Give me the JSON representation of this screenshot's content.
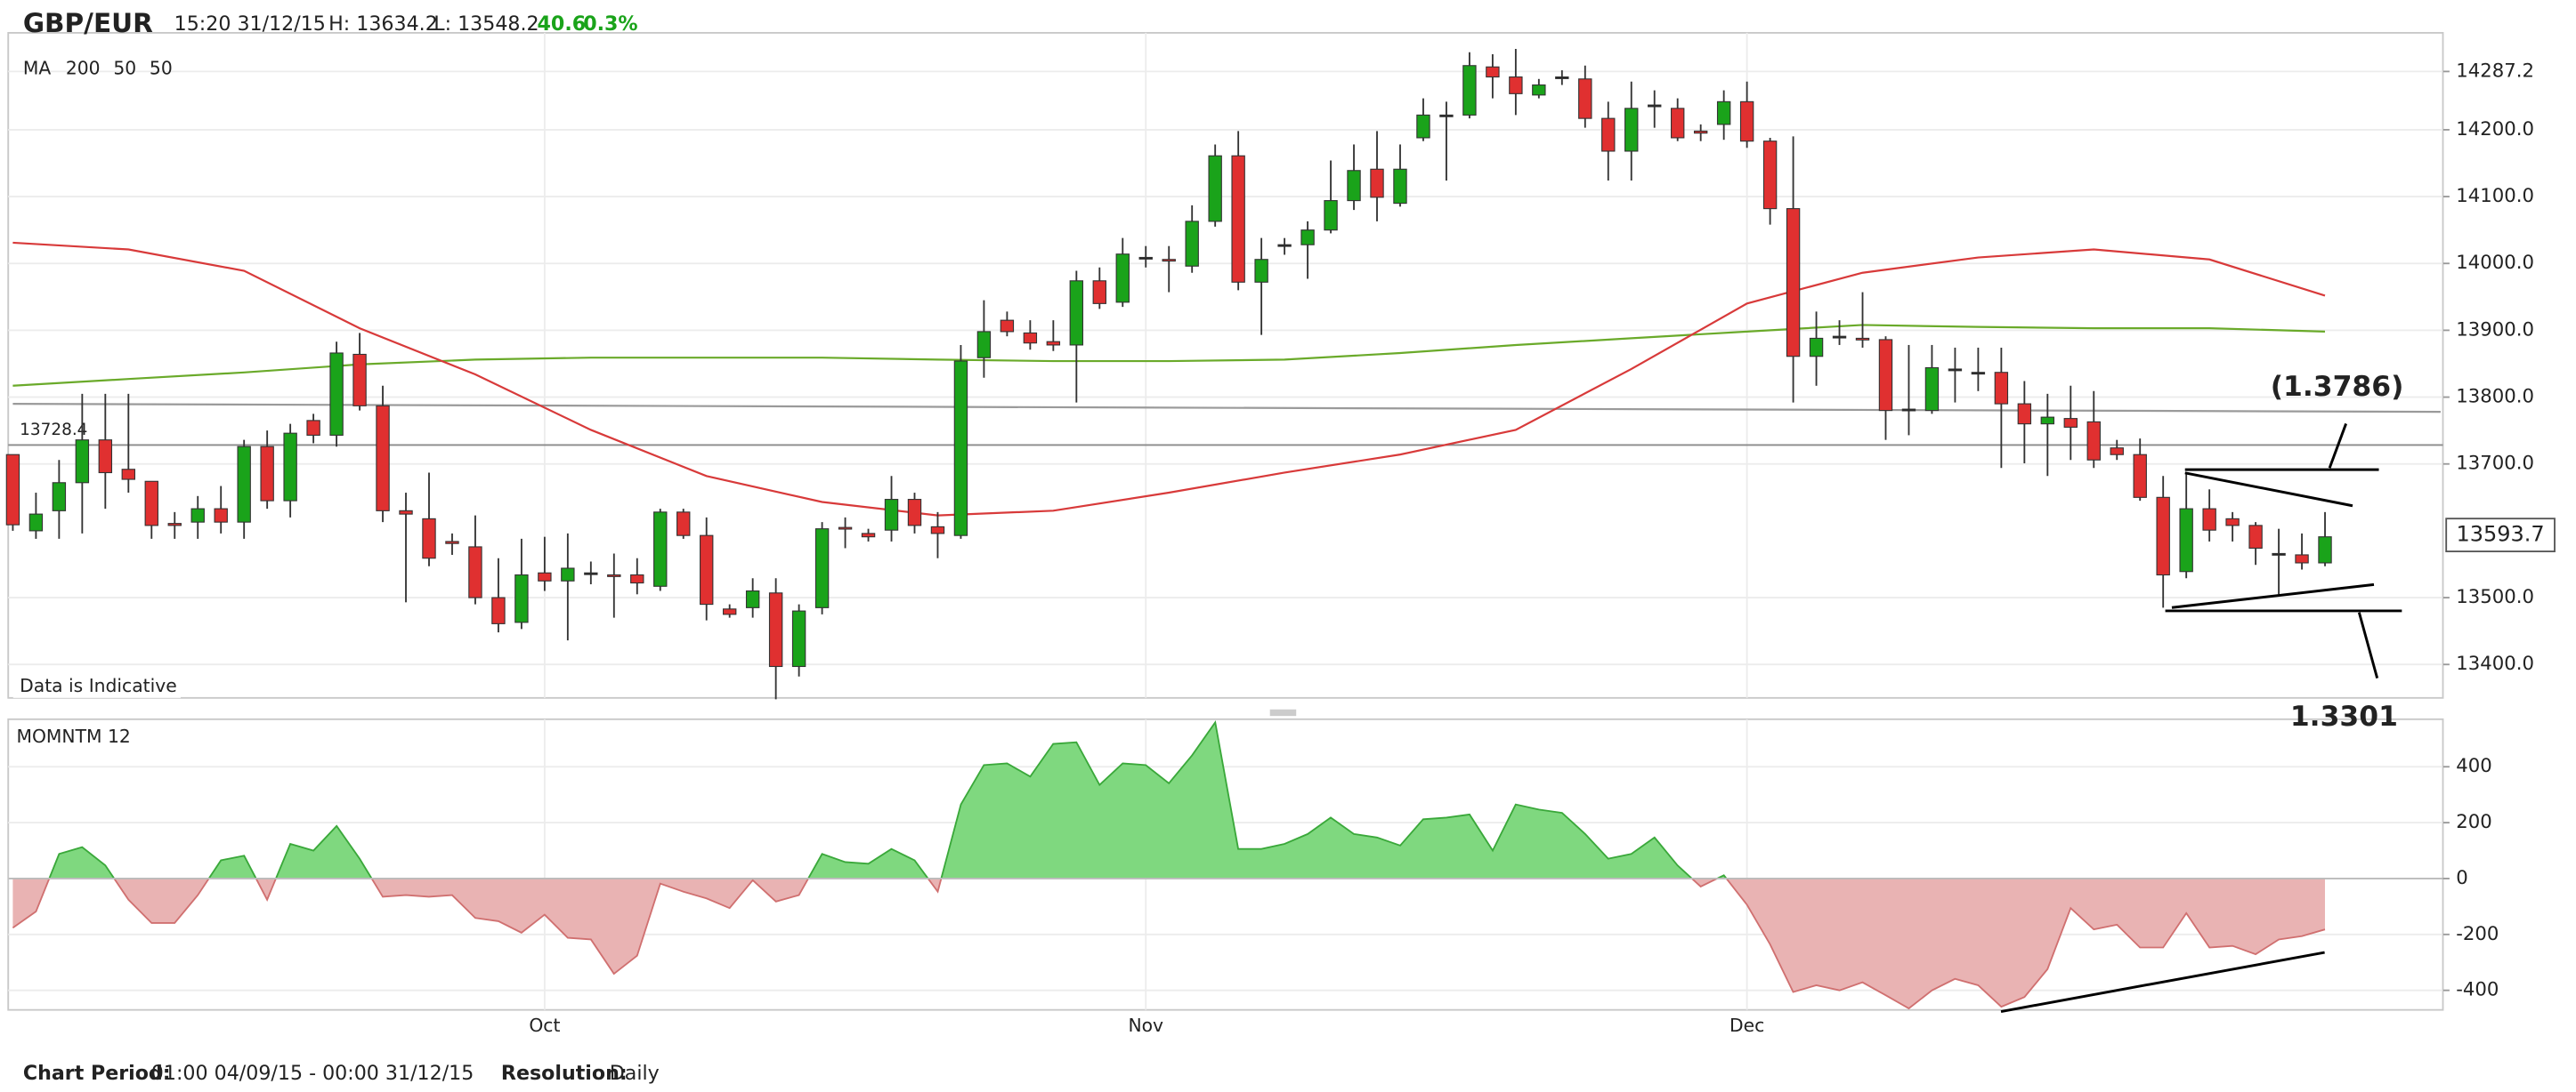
{
  "header": {
    "symbol": "GBP/EUR",
    "time": "15:20 31/12/15",
    "high": "H: 13634.2",
    "low": "L: 13548.2",
    "change": "40.6",
    "change_pct": "0.3%"
  },
  "footer": {
    "period_label": "Chart Period:",
    "period": "01:00 04/09/15 - 00:00 31/12/15",
    "resolution_label": "Resolution:",
    "resolution": "Daily"
  },
  "chart_data": [
    {
      "type": "candlestick",
      "legend_title": "MA",
      "note": "Data is Indicative",
      "up_color": "#1aa31a",
      "down_color": "#e03030",
      "flat_color": "#222222",
      "xlim": [
        -0.2,
        105.1
      ],
      "ylim": [
        13350,
        14345
      ],
      "yticks": [
        14287.2,
        {
          "value": 14200,
          "label": "14200.0"
        },
        {
          "value": 14100,
          "label": "14100.0"
        },
        {
          "value": 14000,
          "label": "14000.0"
        },
        {
          "value": 13900,
          "label": "13900.0"
        },
        {
          "value": 13800,
          "label": "13800.0"
        },
        {
          "value": 13700,
          "label": "13700.0"
        },
        {
          "value": 13500,
          "label": "13500.0"
        },
        {
          "value": 13400,
          "label": "13400.0"
        }
      ],
      "grid": true,
      "hlines": [
        13728.4
      ],
      "last_value": 13593.7,
      "categories": [
        null,
        null,
        null,
        null,
        null,
        null,
        null,
        null,
        null,
        null,
        null,
        null,
        null,
        null,
        null,
        null,
        null,
        null,
        null,
        null,
        null,
        null,
        null,
        "Oct",
        null,
        null,
        null,
        null,
        null,
        null,
        null,
        null,
        null,
        null,
        null,
        null,
        null,
        null,
        null,
        null,
        null,
        null,
        null,
        null,
        null,
        null,
        null,
        null,
        null,
        "Nov",
        null,
        null,
        null,
        null,
        null,
        null,
        null,
        null,
        null,
        null,
        null,
        null,
        null,
        null,
        null,
        null,
        null,
        null,
        null,
        null,
        null,
        null,
        null,
        null,
        null,
        "Dec",
        null,
        null,
        null,
        null,
        null,
        null,
        null,
        null,
        null,
        null,
        null,
        null,
        null,
        null,
        null,
        null,
        null,
        null,
        null,
        null,
        null,
        null,
        null,
        null,
        null
      ],
      "ohlc": [
        [
          13714,
          13714,
          13600,
          13609
        ],
        [
          13600,
          13657,
          13588,
          13625
        ],
        [
          13630,
          13706,
          13588,
          13672
        ],
        [
          13672,
          13805,
          13596,
          13736
        ],
        [
          13736,
          13805,
          13633,
          13687
        ],
        [
          13692,
          13805,
          13657,
          13677
        ],
        [
          13674,
          13674,
          13588,
          13608
        ],
        [
          13611,
          13628,
          13588,
          13608
        ],
        [
          13613,
          13652,
          13588,
          13633
        ],
        [
          13633,
          13667,
          13596,
          13613
        ],
        [
          13613,
          13736,
          13588,
          13726
        ],
        [
          13726,
          13750,
          13633,
          13645
        ],
        [
          13645,
          13760,
          13620,
          13746
        ],
        [
          13765,
          13775,
          13731,
          13743
        ],
        [
          13743,
          13883,
          13726,
          13866
        ],
        [
          13864,
          13896,
          13780,
          13787
        ],
        [
          13787,
          13817,
          13613,
          13630
        ],
        [
          13630,
          13657,
          13493,
          13625
        ],
        [
          13618,
          13687,
          13547,
          13559
        ],
        [
          13584,
          13596,
          13564,
          13581
        ],
        [
          13576,
          13623,
          13490,
          13500
        ],
        [
          13500,
          13559,
          13448,
          13461
        ],
        [
          13463,
          13588,
          13453,
          13534
        ],
        [
          13537,
          13591,
          13510,
          13525
        ],
        [
          13525,
          13596,
          13436,
          13544
        ],
        [
          13537,
          13554,
          13520,
          13537
        ],
        [
          13534,
          13566,
          13470,
          13532
        ],
        [
          13534,
          13559,
          13505,
          13522
        ],
        [
          13517,
          13633,
          13510,
          13628
        ],
        [
          13628,
          13633,
          13588,
          13593
        ],
        [
          13593,
          13620,
          13466,
          13490
        ],
        [
          13483,
          13490,
          13470,
          13475
        ],
        [
          13485,
          13529,
          13470,
          13510
        ],
        [
          13507,
          13529,
          13348,
          13397
        ],
        [
          13397,
          13490,
          13382,
          13480
        ],
        [
          13485,
          13613,
          13475,
          13603
        ],
        [
          13605,
          13620,
          13574,
          13603
        ],
        [
          13596,
          13603,
          13584,
          13591
        ],
        [
          13601,
          13682,
          13584,
          13647
        ],
        [
          13647,
          13657,
          13596,
          13608
        ],
        [
          13606,
          13628,
          13559,
          13596
        ],
        [
          13593,
          13878,
          13588,
          13854
        ],
        [
          13859,
          13945,
          13829,
          13898
        ],
        [
          13915,
          13928,
          13891,
          13898
        ],
        [
          13896,
          13915,
          13871,
          13881
        ],
        [
          13883,
          13915,
          13869,
          13878
        ],
        [
          13878,
          13989,
          13792,
          13974
        ],
        [
          13974,
          13994,
          13932,
          13940
        ],
        [
          13942,
          14038,
          13935,
          14014
        ],
        [
          14009,
          14026,
          13994,
          14009
        ],
        [
          14006,
          14026,
          13957,
          14004
        ],
        [
          13996,
          14087,
          13986,
          14063
        ],
        [
          14063,
          14178,
          14055,
          14161
        ],
        [
          14161,
          14198,
          13960,
          13972
        ],
        [
          13972,
          14038,
          13893,
          14006
        ],
        [
          14028,
          14038,
          14013,
          14028
        ],
        [
          14028,
          14063,
          13977,
          14050
        ],
        [
          14050,
          14154,
          14045,
          14094
        ],
        [
          14094,
          14178,
          14080,
          14139
        ],
        [
          14141,
          14198,
          14063,
          14099
        ],
        [
          14090,
          14178,
          14085,
          14141
        ],
        [
          14188,
          14247,
          14183,
          14222
        ],
        [
          14222,
          14242,
          14124,
          14222
        ],
        [
          14222,
          14316,
          14217,
          14296
        ],
        [
          14294,
          14313,
          14247,
          14279
        ],
        [
          14279,
          14321,
          14222,
          14254
        ],
        [
          14252,
          14276,
          14247,
          14267
        ],
        [
          14279,
          14289,
          14267,
          14279
        ],
        [
          14276,
          14296,
          14203,
          14217
        ],
        [
          14217,
          14242,
          14124,
          14168
        ],
        [
          14168,
          14272,
          14124,
          14232
        ],
        [
          14237,
          14259,
          14203,
          14237
        ],
        [
          14232,
          14247,
          14183,
          14188
        ],
        [
          14198,
          14208,
          14183,
          14195
        ],
        [
          14208,
          14259,
          14185,
          14242
        ],
        [
          14242,
          14272,
          14173,
          14183
        ],
        [
          14183,
          14188,
          14058,
          14082
        ],
        [
          14082,
          14190,
          13792,
          13861
        ],
        [
          13861,
          13928,
          13817,
          13888
        ],
        [
          13891,
          13915,
          13878,
          13891
        ],
        [
          13888,
          13957,
          13874,
          13886
        ],
        [
          13886,
          13891,
          13736,
          13780
        ],
        [
          13782,
          13878,
          13743,
          13782
        ],
        [
          13780,
          13878,
          13775,
          13844
        ],
        [
          13842,
          13874,
          13792,
          13842
        ],
        [
          13837,
          13874,
          13809,
          13837
        ],
        [
          13837,
          13874,
          13694,
          13790
        ],
        [
          13790,
          13824,
          13701,
          13760
        ],
        [
          13760,
          13805,
          13682,
          13770
        ],
        [
          13768,
          13817,
          13706,
          13755
        ],
        [
          13763,
          13809,
          13694,
          13706
        ],
        [
          13724,
          13736,
          13706,
          13714
        ],
        [
          13714,
          13738,
          13645,
          13650
        ],
        [
          13650,
          13682,
          13485,
          13534
        ],
        [
          13539,
          13687,
          13529,
          13633
        ],
        [
          13633,
          13662,
          13584,
          13601
        ],
        [
          13618,
          13628,
          13584,
          13608
        ],
        [
          13608,
          13613,
          13549,
          13574
        ],
        [
          13566,
          13603,
          13505,
          13566
        ],
        [
          13564,
          13596,
          13542,
          13552
        ],
        [
          13552,
          13628,
          13547,
          13591
        ]
      ],
      "series": [
        {
          "name": "200",
          "color": "#6aaa2a",
          "x": [
            0,
            5,
            10,
            15,
            20,
            25,
            30,
            35,
            40,
            45,
            50,
            55,
            60,
            65,
            70,
            75,
            80,
            85,
            90,
            95,
            100
          ],
          "values": [
            13817,
            13827,
            13837,
            13849,
            13856,
            13859,
            13859,
            13859,
            13856,
            13854,
            13854,
            13856,
            13866,
            13878,
            13888,
            13898,
            13908,
            13905,
            13903,
            13903,
            13898
          ]
        },
        {
          "name": "50",
          "color": "#9a9a9a",
          "x": [
            0,
            105
          ],
          "values": [
            13790,
            13778
          ]
        },
        {
          "name": "50",
          "color": "#d83a3a",
          "x": [
            0,
            5,
            10,
            15,
            20,
            25,
            30,
            35,
            40,
            45,
            50,
            55,
            60,
            65,
            70,
            75,
            80,
            85,
            90,
            95,
            100
          ],
          "values": [
            14031,
            14021,
            13989,
            13903,
            13834,
            13751,
            13682,
            13643,
            13623,
            13630,
            13657,
            13687,
            13714,
            13751,
            13842,
            13940,
            13986,
            14009,
            14021,
            14006,
            13952
          ]
        }
      ],
      "annotations": [
        "(1.3786)",
        "1.3301"
      ]
    },
    {
      "type": "area",
      "title": "MOMNTM 12",
      "pos_color": "#7fd87f",
      "pos_line": "#3aa83a",
      "neg_color": "#e9b3b3",
      "neg_line": "#d07070",
      "xlim": [
        -0.2,
        105.1
      ],
      "ylim": [
        -470,
        570
      ],
      "yticks": [
        400,
        200,
        0,
        -200,
        -400
      ],
      "grid": true,
      "values": [
        -176,
        -118,
        88,
        112,
        47,
        -76,
        -159,
        -159,
        -59,
        65,
        82,
        -76,
        124,
        100,
        188,
        71,
        -65,
        -59,
        -65,
        -59,
        -141,
        -153,
        -194,
        -129,
        -212,
        -218,
        -341,
        -276,
        -18,
        -47,
        -71,
        -106,
        -6,
        -82,
        -59,
        88,
        59,
        53,
        106,
        65,
        -47,
        265,
        406,
        412,
        365,
        482,
        488,
        335,
        412,
        406,
        341,
        441,
        559,
        106,
        106,
        124,
        159,
        218,
        159,
        147,
        118,
        212,
        218,
        229,
        100,
        265,
        247,
        235,
        159,
        71,
        88,
        147,
        47,
        -29,
        12,
        -94,
        -235,
        -406,
        -382,
        -400,
        -371,
        -418,
        -465,
        -400,
        -359,
        -382,
        -459,
        -424,
        -324,
        -106,
        -182,
        -165,
        -247,
        -247,
        -124,
        -247,
        -241,
        -271,
        -218,
        -206,
        -182
      ]
    }
  ]
}
